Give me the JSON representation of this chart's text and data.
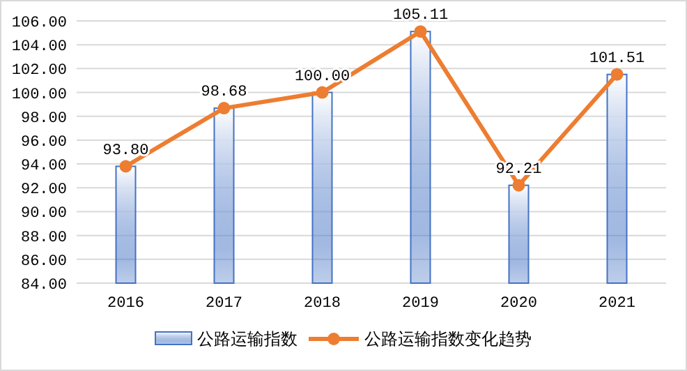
{
  "chart_data": {
    "type": "bar",
    "categories": [
      "2016",
      "2017",
      "2018",
      "2019",
      "2020",
      "2021"
    ],
    "series": [
      {
        "name": "公路运输指数",
        "color": "#4472c4",
        "values": [
          93.8,
          98.68,
          100.0,
          105.11,
          92.21,
          101.51
        ]
      },
      {
        "name": "公路运输指数变化趋势",
        "type": "line",
        "color": "#ed7d31",
        "marker": "circle",
        "values": [
          93.8,
          98.68,
          100.0,
          105.11,
          92.21,
          101.51
        ],
        "value_labels": [
          "93.80",
          "98.68",
          "100.00",
          "105.11",
          "92.21",
          "101.51"
        ]
      }
    ],
    "ylim": [
      84,
      106
    ],
    "yticks": [
      {
        "value": 84,
        "label": "84.00"
      },
      {
        "value": 86,
        "label": "86.00"
      },
      {
        "value": 88,
        "label": "88.00"
      },
      {
        "value": 90,
        "label": "90.00"
      },
      {
        "value": 92,
        "label": "92.00"
      },
      {
        "value": 94,
        "label": "94.00"
      },
      {
        "value": 96,
        "label": "96.00"
      },
      {
        "value": 98,
        "label": "98.00"
      },
      {
        "value": 100,
        "label": "100.00"
      },
      {
        "value": 102,
        "label": "102.00"
      },
      {
        "value": 104,
        "label": "104.00"
      },
      {
        "value": 106,
        "label": "106.00"
      }
    ],
    "grid": "y",
    "legend": "bottom"
  }
}
